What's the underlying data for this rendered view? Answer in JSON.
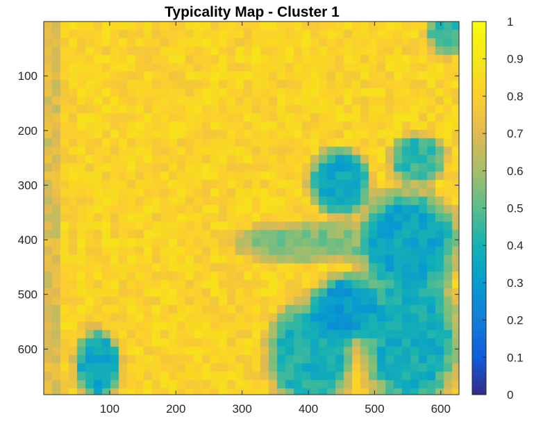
{
  "chart_data": {
    "type": "heatmap",
    "title": "Typicality Map - Cluster 1",
    "xlabel": "",
    "ylabel": "",
    "xlim": [
      0.5,
      627.5
    ],
    "ylim": [
      0.5,
      683.5
    ],
    "y_direction": "reverse",
    "x_ticks": [
      100,
      200,
      300,
      400,
      500,
      600
    ],
    "x_tick_labels": [
      "100",
      "200",
      "300",
      "400",
      "500",
      "600"
    ],
    "y_ticks": [
      100,
      200,
      300,
      400,
      500,
      600
    ],
    "y_tick_labels": [
      "100",
      "200",
      "300",
      "400",
      "500",
      "600"
    ],
    "colorbar": {
      "colormap": "parula",
      "clim": [
        0,
        1
      ],
      "ticks": [
        0,
        0.1,
        0.2,
        0.3,
        0.4,
        0.5,
        0.6,
        0.7,
        0.8,
        0.9,
        1
      ],
      "tick_labels": [
        "0",
        "0.1",
        "0.2",
        "0.3",
        "0.4",
        "0.5",
        "0.6",
        "0.7",
        "0.8",
        "0.9",
        "1"
      ]
    },
    "grid": false,
    "background_value": 0.82,
    "regions": [
      {
        "description": "diagonal low band",
        "x": [
          425,
          470
        ],
        "y": [
          260,
          330
        ],
        "value": 0.35
      },
      {
        "description": "mid right blob",
        "x": [
          500,
          600
        ],
        "y": [
          340,
          470
        ],
        "value": 0.35
      },
      {
        "description": "lower right",
        "x": [
          510,
          600
        ],
        "y": [
          480,
          680
        ],
        "value": 0.38
      },
      {
        "description": "bottom center",
        "x": [
          365,
          440
        ],
        "y": [
          540,
          683
        ],
        "value": 0.4
      },
      {
        "description": "center bottom blob",
        "x": [
          430,
          485
        ],
        "y": [
          490,
          560
        ],
        "value": 0.3
      },
      {
        "description": "top right corner",
        "x": [
          600,
          627
        ],
        "y": [
          1,
          40
        ],
        "value": 0.45
      },
      {
        "description": "right patch",
        "x": [
          545,
          585
        ],
        "y": [
          230,
          275
        ],
        "value": 0.45
      },
      {
        "description": "bottom left streak",
        "x": [
          70,
          95
        ],
        "y": [
          590,
          670
        ],
        "value": 0.35
      },
      {
        "description": "horizontal band",
        "x": [
          320,
          480
        ],
        "y": [
          390,
          420
        ],
        "value": 0.55
      }
    ]
  }
}
